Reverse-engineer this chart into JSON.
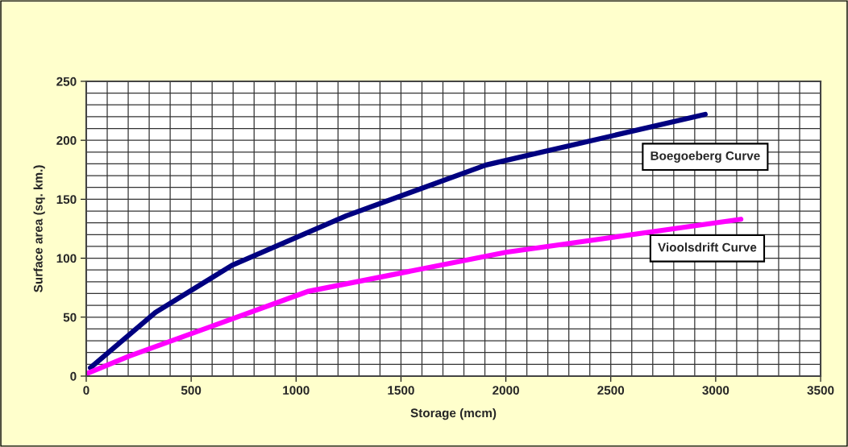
{
  "chart_data": {
    "type": "line",
    "xlabel": "Storage (mcm)",
    "ylabel": "Surface area (sq. km.)",
    "xlim": [
      0,
      3500
    ],
    "xticks": [
      0,
      500,
      1000,
      1500,
      2000,
      2500,
      3000,
      3500
    ],
    "ylim": [
      0,
      250
    ],
    "yticks": [
      0,
      50,
      100,
      150,
      200,
      250
    ],
    "grid": true,
    "marker": "none",
    "line_style": "solid",
    "legend": false,
    "series": [
      {
        "name": "Boegoeberg Curve",
        "color": "#000080",
        "x": [
          20,
          330,
          695,
          1240,
          1905,
          2950
        ],
        "values": [
          7,
          54,
          94,
          136,
          179,
          222
        ]
      },
      {
        "name": "Vioolsdrift Curve",
        "color": "#ff00ff",
        "x": [
          0,
          205,
          1060,
          2000,
          3120
        ],
        "values": [
          2,
          17,
          72,
          105,
          133
        ]
      }
    ]
  }
}
